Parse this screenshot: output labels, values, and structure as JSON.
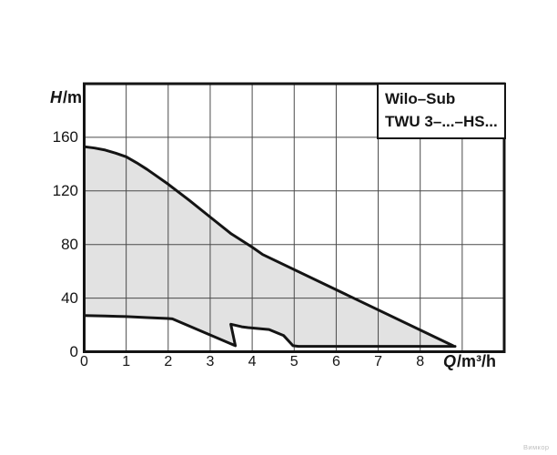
{
  "watermark": "Вимкор",
  "chart_data": {
    "type": "area",
    "title": "Wilo-Sub TWU 3-...-HS...",
    "title_box": {
      "line1": "Wilo–Sub",
      "line2": "TWU 3–...–HS..."
    },
    "ylabel": "H/m",
    "ylabel_sym": "H",
    "ylabel_unit": "/m",
    "xlabel": "Q/m³/h",
    "xlabel_sym": "Q",
    "xlabel_unit": "/m³/h",
    "xlim": [
      0,
      10
    ],
    "ylim": [
      0,
      200
    ],
    "x_ticks": [
      0,
      1,
      2,
      3,
      4,
      5,
      6,
      7,
      8
    ],
    "y_ticks": [
      0,
      40,
      80,
      120,
      160
    ],
    "grid": "on",
    "legend": "none",
    "colors": {
      "fill": "#e2e2e2",
      "line": "#141414",
      "grid": "#4a4a4a"
    },
    "series": [
      {
        "name": "max-head-envelope",
        "points": [
          [
            0,
            153
          ],
          [
            0.25,
            152
          ],
          [
            0.5,
            150.5
          ],
          [
            0.75,
            148.2
          ],
          [
            1,
            145.5
          ],
          [
            1.25,
            141
          ],
          [
            1.5,
            136
          ],
          [
            1.75,
            130.5
          ],
          [
            2,
            125
          ],
          [
            2.5,
            113
          ],
          [
            3,
            100.5
          ],
          [
            3.5,
            88
          ],
          [
            4,
            78
          ],
          [
            4.25,
            72.5
          ],
          [
            8.78,
            4.5
          ]
        ]
      },
      {
        "name": "min-head-envelope",
        "points": [
          [
            0,
            27
          ],
          [
            0.5,
            26.6
          ],
          [
            1,
            26.2
          ],
          [
            1.5,
            25.5
          ],
          [
            2,
            24.8
          ],
          [
            2.1,
            24.5
          ],
          [
            3.6,
            4.5
          ],
          [
            3.49,
            20.5
          ],
          [
            3.75,
            18.6
          ],
          [
            3.9,
            18
          ],
          [
            4.4,
            16.6
          ],
          [
            4.75,
            12
          ],
          [
            4.97,
            4.5
          ],
          [
            5.1,
            4
          ],
          [
            8.83,
            4
          ]
        ]
      }
    ]
  }
}
